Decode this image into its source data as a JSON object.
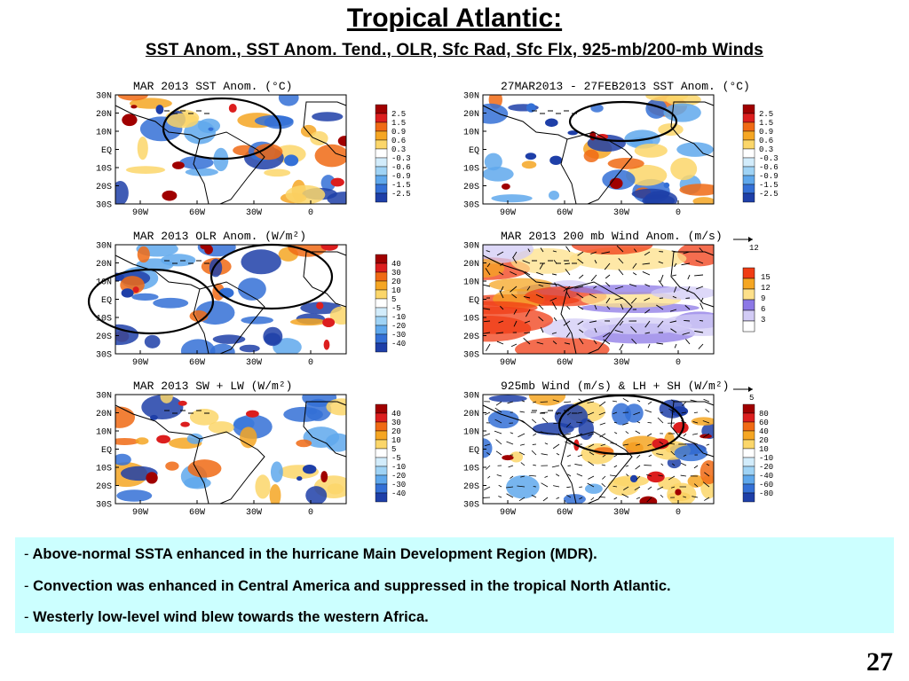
{
  "slide": {
    "title": "Tropical Atlantic:",
    "subtitle": "SST Anom., SST Anom. Tend., OLR, Sfc Rad, Sfc Flx, 925-mb/200-mb Winds",
    "page_number": "27"
  },
  "map_axes": {
    "lat_labels": [
      "30N",
      "20N",
      "10N",
      "EQ",
      "10S",
      "20S",
      "30S"
    ],
    "lon_labels": [
      "90W",
      "60W",
      "30W",
      "0"
    ]
  },
  "panels": [
    {
      "id": "sst-anom",
      "title": "MAR 2013 SST Anom. (°C)",
      "legend": [
        "2.5",
        "1.5",
        "0.9",
        "0.6",
        "0.3",
        "-0.3",
        "-0.6",
        "-0.9",
        "-1.5",
        "-2.5"
      ],
      "legend_style": "diverging",
      "highlight_circles": 1
    },
    {
      "id": "sst-tend",
      "title": "27MAR2013 - 27FEB2013 SST Anom. (°C)",
      "legend": [
        "2.5",
        "1.5",
        "0.9",
        "0.6",
        "0.3",
        "-0.3",
        "-0.6",
        "-0.9",
        "-1.5",
        "-2.5"
      ],
      "legend_style": "diverging",
      "highlight_circles": 1
    },
    {
      "id": "olr-anom",
      "title": "MAR 2013 OLR Anom. (W/m²)",
      "legend": [
        "40",
        "30",
        "20",
        "10",
        "5",
        "-5",
        "-10",
        "-20",
        "-30",
        "-40"
      ],
      "legend_style": "diverging",
      "highlight_circles": 2
    },
    {
      "id": "wind200",
      "title": "MAR 2013 200 mb Wind Anom. (m/s)",
      "legend": [
        "15",
        "12",
        "9",
        "6",
        "3"
      ],
      "legend_style": "sequential",
      "ref_vector": "12",
      "highlight_circles": 0
    },
    {
      "id": "sw-lw",
      "title": "MAR 2013 SW + LW (W/m²)",
      "legend": [
        "40",
        "30",
        "20",
        "10",
        "5",
        "-5",
        "-10",
        "-20",
        "-30",
        "-40"
      ],
      "legend_style": "diverging",
      "highlight_circles": 0
    },
    {
      "id": "wind925",
      "title": "925mb Wind (m/s) & LH + SH (W/m²)",
      "legend": [
        "80",
        "60",
        "40",
        "20",
        "10",
        "-10",
        "-20",
        "-40",
        "-60",
        "-80"
      ],
      "legend_style": "diverging",
      "ref_vector": "5",
      "highlight_circles": 1
    }
  ],
  "notes": [
    {
      "dash": "-",
      "text": " Above-normal SSTA enhanced in the hurricane Main Development Region (MDR)."
    },
    {
      "dash": "-",
      "text": " Convection was enhanced in Central America and suppressed in the tropical North Atlantic."
    },
    {
      "dash": "-",
      "text": " Westerly low-level  wind blew towards the  western Africa."
    }
  ],
  "colors": {
    "notes_bg": "#ccffff",
    "warm": [
      "#a00000",
      "#dc1e1e",
      "#f06a14",
      "#f5a623",
      "#fbd66a"
    ],
    "cool": [
      "#d2ecfb",
      "#9fd3f5",
      "#5fa8ec",
      "#3470d6",
      "#1e3fa8"
    ],
    "wind_sequential": [
      "#f03c14",
      "#f5a623",
      "#fde08a",
      "#8c78e6",
      "#d2cbf5"
    ]
  }
}
